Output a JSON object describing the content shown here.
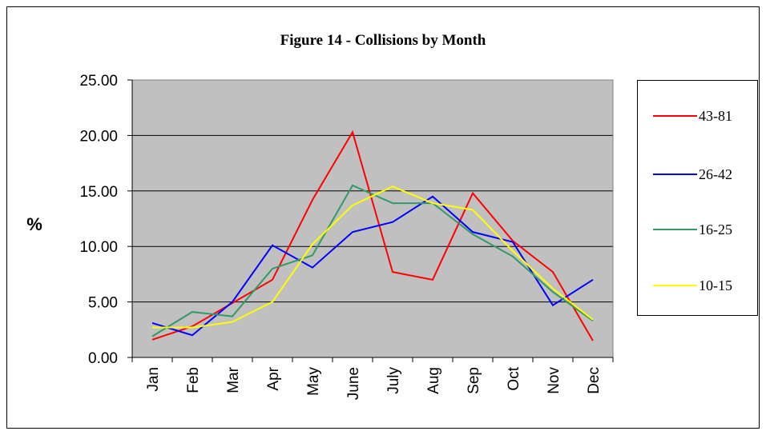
{
  "chart_data": {
    "type": "line",
    "title": "Figure 14 - Collisions by Month",
    "y_label": "%",
    "categories": [
      "Jan",
      "Feb",
      "Mar",
      "Apr",
      "May",
      "June",
      "July",
      "Aug",
      "Sep",
      "Oct",
      "Nov",
      "Dec"
    ],
    "series": [
      {
        "name": "43-81",
        "color": "#ff0000",
        "values": [
          1.6,
          2.8,
          4.9,
          7.0,
          14.2,
          20.3,
          7.7,
          7.0,
          14.8,
          10.5,
          7.7,
          1.5
        ]
      },
      {
        "name": "26-42",
        "color": "#0000ff",
        "values": [
          3.1,
          2.0,
          5.0,
          10.1,
          8.1,
          11.3,
          12.2,
          14.5,
          11.3,
          10.4,
          4.7,
          7.0
        ]
      },
      {
        "name": "16-25",
        "color": "#339966",
        "values": [
          1.9,
          4.1,
          3.7,
          8.0,
          9.2,
          15.5,
          13.9,
          13.9,
          11.1,
          9.1,
          5.9,
          3.3
        ]
      },
      {
        "name": "10-15",
        "color": "#ffff00",
        "values": [
          2.7,
          2.7,
          3.2,
          5.0,
          10.2,
          13.7,
          15.4,
          13.9,
          13.3,
          9.6,
          6.2,
          3.4
        ]
      }
    ],
    "ylim": [
      0,
      25
    ],
    "yticks": [
      {
        "value": 0,
        "label": "0.00"
      },
      {
        "value": 5,
        "label": "5.00"
      },
      {
        "value": 10,
        "label": "10.00"
      },
      {
        "value": 15,
        "label": "15.00"
      },
      {
        "value": 20,
        "label": "20.00"
      },
      {
        "value": 25,
        "label": "25.00"
      }
    ],
    "grid": true,
    "plot_background": "#c0c0c0",
    "legend": "right"
  }
}
